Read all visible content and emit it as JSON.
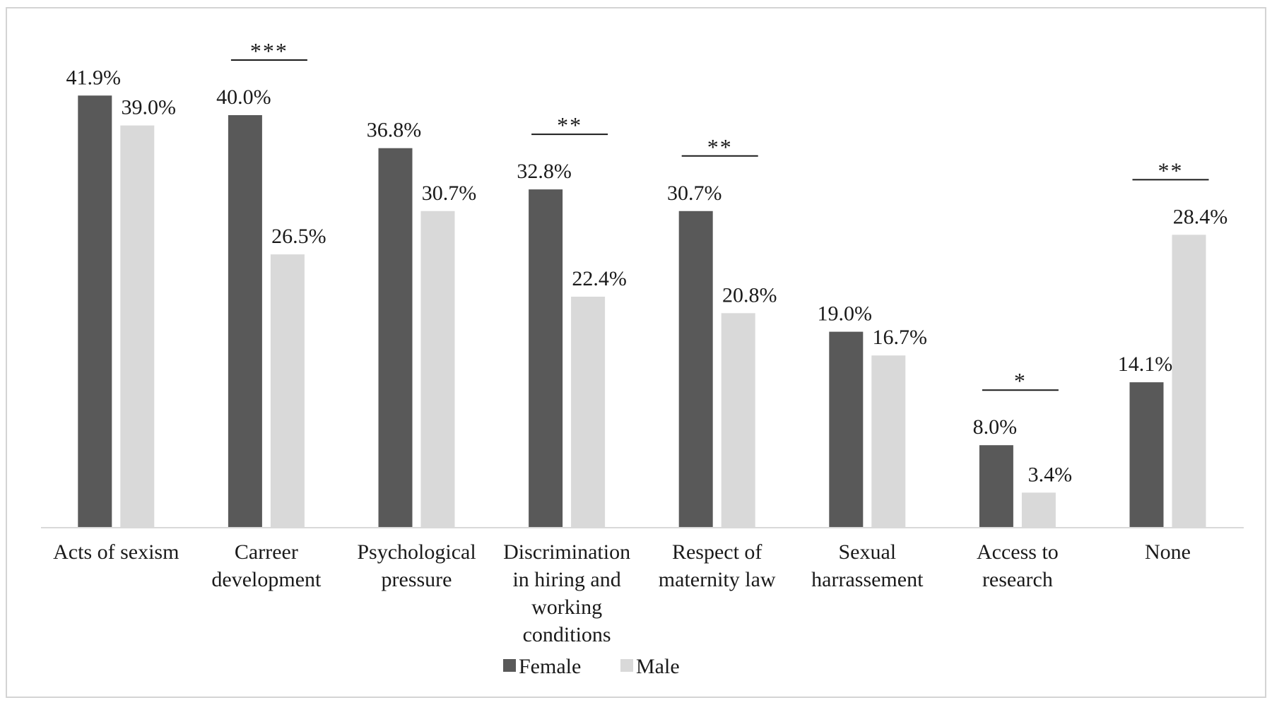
{
  "chart_data": {
    "type": "bar",
    "categories": [
      [
        "Acts of sexism"
      ],
      [
        "Carreer",
        "development"
      ],
      [
        "Psychological",
        "pressure"
      ],
      [
        "Discrimination",
        "in hiring and",
        "working",
        "conditions"
      ],
      [
        "Respect of",
        "maternity law"
      ],
      [
        "Sexual",
        "harrassement"
      ],
      [
        "Access to",
        "research"
      ],
      [
        "None"
      ]
    ],
    "series": [
      {
        "name": "Female",
        "color": "#595959",
        "values": [
          41.9,
          40.0,
          36.8,
          32.8,
          30.7,
          19.0,
          8.0,
          14.1
        ],
        "labels": [
          "41.9%",
          "40.0%",
          "36.8%",
          "32.8%",
          "30.7%",
          "19.0%",
          "8.0%",
          "14.1%"
        ]
      },
      {
        "name": "Male",
        "color": "#d9d9d9",
        "values": [
          39.0,
          26.5,
          30.7,
          22.4,
          20.8,
          16.7,
          3.4,
          28.4
        ],
        "labels": [
          "39.0%",
          "26.5%",
          "30.7%",
          "22.4%",
          "20.8%",
          "16.7%",
          "3.4%",
          "28.4%"
        ]
      }
    ],
    "significance": [
      "",
      "***",
      "",
      "**",
      "**",
      "",
      "*",
      "**"
    ],
    "ylim": [
      0,
      45
    ],
    "grid": false,
    "legend": "bottom-center",
    "title": "",
    "xlabel": "",
    "ylabel": ""
  }
}
